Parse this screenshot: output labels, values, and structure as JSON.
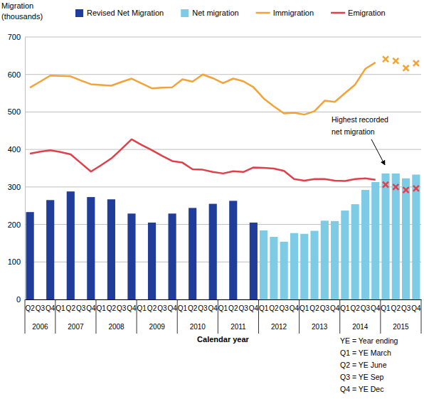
{
  "chart_data": {
    "type": "bar",
    "y_label": [
      "Migration",
      "(thousands)"
    ],
    "x_label": "Calendar year",
    "categories": [
      "Q2",
      "Q3",
      "Q4",
      "Q1",
      "Q2",
      "Q3",
      "Q4",
      "Q1",
      "Q2",
      "Q3",
      "Q4",
      "Q1",
      "Q2",
      "Q3",
      "Q4",
      "Q1",
      "Q2",
      "Q3",
      "Q4",
      "Q1",
      "Q2",
      "Q3",
      "Q4",
      "Q1",
      "Q2",
      "Q3",
      "Q4",
      "Q1",
      "Q2",
      "Q3",
      "Q4",
      "Q1",
      "Q2",
      "Q3",
      "Q4",
      "Q1",
      "Q2",
      "Q3",
      "Q4"
    ],
    "groups": [
      {
        "label": "2006",
        "span": 3
      },
      {
        "label": "2007",
        "span": 4
      },
      {
        "label": "2008",
        "span": 4
      },
      {
        "label": "2009",
        "span": 4
      },
      {
        "label": "2010",
        "span": 4
      },
      {
        "label": "2011",
        "span": 4
      },
      {
        "label": "2012",
        "span": 4
      },
      {
        "label": "2013",
        "span": 4
      },
      {
        "label": "2014",
        "span": 4
      },
      {
        "label": "2015",
        "span": 4
      }
    ],
    "series": [
      {
        "name": "Revised Net Migration",
        "type": "bar",
        "color": "#1f3d99",
        "values": [
          233,
          null,
          265,
          null,
          288,
          null,
          273,
          null,
          267,
          null,
          229,
          null,
          205,
          null,
          229,
          null,
          244,
          null,
          255,
          null,
          263,
          null,
          205,
          null,
          null,
          null,
          null,
          null,
          null,
          null,
          null,
          null,
          null,
          null,
          null,
          null,
          null,
          null,
          null
        ]
      },
      {
        "name": "Net migration",
        "type": "bar",
        "color": "#7ecbe6",
        "values": [
          null,
          null,
          null,
          null,
          null,
          null,
          null,
          null,
          null,
          null,
          null,
          null,
          null,
          null,
          null,
          null,
          null,
          null,
          null,
          null,
          null,
          null,
          null,
          184,
          167,
          154,
          177,
          175,
          183,
          210,
          209,
          237,
          254,
          292,
          313,
          336,
          336,
          323,
          333
        ]
      },
      {
        "name": "Immigration",
        "type": "line",
        "color": "#f3a33a",
        "values": [
          565,
          581,
          597,
          596,
          595,
          584,
          574,
          572,
          570,
          580,
          589,
          576,
          563,
          565,
          566,
          587,
          581,
          600,
          590,
          577,
          589,
          582,
          566,
          536,
          515,
          496,
          498,
          493,
          502,
          530,
          527,
          550,
          573,
          615,
          632,
          null,
          null,
          null,
          null
        ]
      },
      {
        "name": "Emigration",
        "type": "line",
        "color": "#e0404b",
        "values": [
          389,
          394,
          398,
          393,
          387,
          364,
          341,
          358,
          376,
          401,
          427,
          412,
          398,
          383,
          369,
          365,
          347,
          346,
          340,
          336,
          342,
          340,
          352,
          351,
          349,
          343,
          321,
          317,
          321,
          321,
          317,
          316,
          321,
          323,
          319,
          null,
          null,
          null,
          null
        ]
      },
      {
        "type": "scatter",
        "marker": "x",
        "color": "#f3a33a",
        "values": [
          null,
          null,
          null,
          null,
          null,
          null,
          null,
          null,
          null,
          null,
          null,
          null,
          null,
          null,
          null,
          null,
          null,
          null,
          null,
          null,
          null,
          null,
          null,
          null,
          null,
          null,
          null,
          null,
          null,
          null,
          null,
          null,
          null,
          null,
          null,
          641,
          636,
          617,
          630
        ]
      },
      {
        "type": "scatter",
        "marker": "x",
        "color": "#e0404b",
        "values": [
          null,
          null,
          null,
          null,
          null,
          null,
          null,
          null,
          null,
          null,
          null,
          null,
          null,
          null,
          null,
          null,
          null,
          null,
          null,
          null,
          null,
          null,
          null,
          null,
          null,
          null,
          null,
          null,
          null,
          null,
          null,
          null,
          null,
          null,
          null,
          306,
          300,
          292,
          296
        ]
      }
    ],
    "ylim": [
      0,
      700
    ],
    "yticks": [
      0,
      100,
      200,
      300,
      400,
      500,
      600,
      700
    ],
    "grid": true,
    "legend": "top",
    "annotation": {
      "text": [
        "Highest recorded",
        "net migration"
      ]
    },
    "notes": [
      "YE = Year ending",
      "Q1 = YE March",
      "Q2 = YE June",
      "Q3 = YE Sep",
      "Q4 = YE Dec"
    ]
  }
}
